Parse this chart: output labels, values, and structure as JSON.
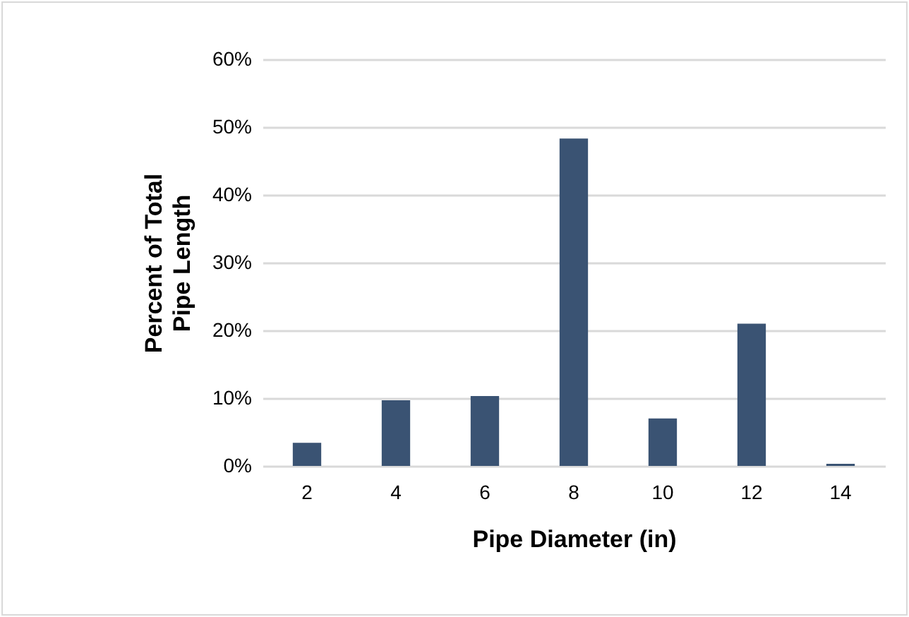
{
  "chart_data": {
    "type": "bar",
    "xlabel": "Pipe Diameter (in)",
    "ylabel": "Percent of Total Pipe Length",
    "categories": [
      "2",
      "4",
      "6",
      "8",
      "10",
      "12",
      "14"
    ],
    "values": [
      3.4,
      9.7,
      10.3,
      48.3,
      7.0,
      21.0,
      0.3
    ],
    "color": "#3a5373",
    "ylim": [
      0,
      60
    ],
    "yticks": [
      {
        "value": 0,
        "label": "0%"
      },
      {
        "value": 10,
        "label": "10%"
      },
      {
        "value": 20,
        "label": "20%"
      },
      {
        "value": 30,
        "label": "30%"
      },
      {
        "value": 40,
        "label": "40%"
      },
      {
        "value": 50,
        "label": "50%"
      },
      {
        "value": 60,
        "label": "60%"
      }
    ],
    "grid": "y",
    "legend": false
  }
}
